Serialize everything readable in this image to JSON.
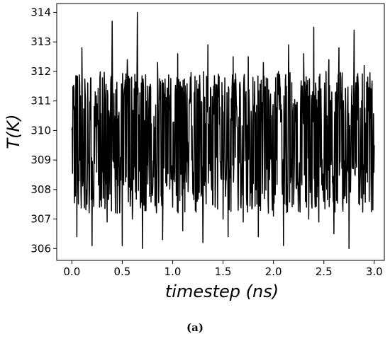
{
  "chart_data": {
    "type": "line",
    "title": "",
    "xlabel": "timestep (ns)",
    "ylabel": "T(K)",
    "xlim": [
      -0.15,
      3.1
    ],
    "ylim": [
      305.6,
      314.3
    ],
    "x_ticks": [
      0.0,
      0.5,
      1.0,
      1.5,
      2.0,
      2.5,
      3.0
    ],
    "x_tick_labels": [
      "0.0",
      "0.5",
      "1.0",
      "1.5",
      "2.0",
      "2.5",
      "3.0"
    ],
    "y_ticks": [
      306,
      307,
      308,
      309,
      310,
      311,
      312,
      313,
      314
    ],
    "y_tick_labels": [
      "306",
      "307",
      "308",
      "309",
      "310",
      "311",
      "312",
      "313",
      "314"
    ],
    "grid": false,
    "legend": "none",
    "line_color": "#000000",
    "series": [
      {
        "x": [
          0.0,
          0.05,
          0.1,
          0.15,
          0.2,
          0.25,
          0.3,
          0.35,
          0.4,
          0.45,
          0.5,
          0.55,
          0.6,
          0.65,
          0.7,
          0.75,
          0.8,
          0.85,
          0.9,
          0.95,
          1.0,
          1.05,
          1.1,
          1.15,
          1.2,
          1.25,
          1.3,
          1.35,
          1.4,
          1.45,
          1.5,
          1.55,
          1.6,
          1.65,
          1.7,
          1.75,
          1.8,
          1.85,
          1.9,
          1.95,
          2.0,
          2.05,
          2.1,
          2.15,
          2.2,
          2.25,
          2.3,
          2.35,
          2.4,
          2.45,
          2.5,
          2.55,
          2.6,
          2.65,
          2.7,
          2.75,
          2.8,
          2.85,
          2.9,
          2.95,
          3.0
        ],
        "y": [
          310.0,
          306.4,
          312.8,
          307.5,
          306.1,
          310.9,
          308.6,
          306.9,
          313.7,
          307.2,
          306.1,
          312.4,
          307.0,
          314.0,
          306.0,
          311.5,
          307.8,
          312.3,
          306.3,
          311.0,
          307.4,
          312.6,
          306.6,
          309.6,
          307.9,
          311.4,
          306.2,
          312.9,
          307.5,
          311.3,
          307.0,
          306.4,
          312.5,
          307.3,
          306.9,
          312.5,
          308.2,
          306.4,
          312.3,
          307.2,
          307.1,
          312.0,
          306.1,
          312.9,
          307.5,
          308.2,
          312.6,
          307.0,
          313.5,
          306.9,
          307.6,
          312.4,
          306.5,
          312.8,
          307.7,
          306.0,
          313.4,
          307.8,
          312.2,
          307.6,
          309.5
        ]
      }
    ]
  },
  "caption": "(a)"
}
